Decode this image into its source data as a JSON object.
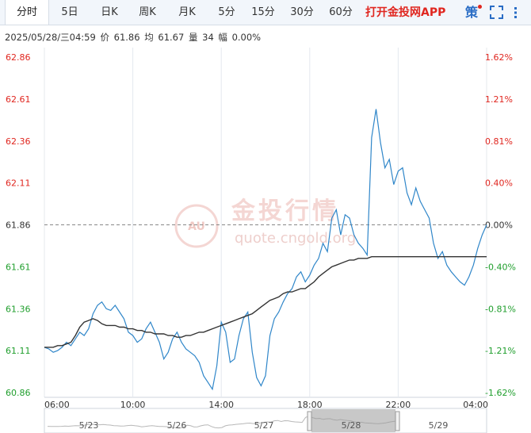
{
  "tabs": [
    {
      "label": "分时",
      "active": true
    },
    {
      "label": "5日"
    },
    {
      "label": "日K"
    },
    {
      "label": "周K"
    },
    {
      "label": "月K"
    },
    {
      "label": "5分"
    },
    {
      "label": "15分"
    },
    {
      "label": "30分"
    },
    {
      "label": "60分"
    }
  ],
  "app_link": "打开金投网APP",
  "policy_label": "策",
  "info": {
    "datetime": "2025/05/28/三04:59",
    "price_label": "价",
    "price": "61.86",
    "avg_label": "均",
    "avg": "61.67",
    "volume_label": "量",
    "volume": "34",
    "change_label": "幅",
    "change": "0.00%"
  },
  "watermark": {
    "title": "金投行情",
    "url": "quote.cngold.org",
    "badge": "AU"
  },
  "colors": {
    "price_line": "#2f86c9",
    "avg_line": "#333333",
    "up": "#e0261f",
    "down": "#1f9e2c",
    "neutral": "#333333",
    "grid": "#e4e8ee",
    "ref_line": "#888888"
  },
  "chart_data": {
    "type": "line",
    "ylim": [
      60.86,
      62.86
    ],
    "base_price": 61.86,
    "y_ticks_left": [
      "62.86",
      "62.61",
      "62.36",
      "62.11",
      "61.86",
      "61.61",
      "61.36",
      "61.11",
      "60.86"
    ],
    "y_ticks_right": [
      "1.62%",
      "1.21%",
      "0.81%",
      "0.40%",
      "0.00%",
      "-0.40%",
      "-0.81%",
      "-1.21%",
      "-1.62%"
    ],
    "x_ticks": [
      "06:00",
      "10:00",
      "14:00",
      "18:00",
      "22:00",
      "04:00"
    ],
    "series": [
      {
        "values": [
          61.13,
          61.12,
          61.1,
          61.11,
          61.13,
          61.16,
          61.14,
          61.18,
          61.22,
          61.2,
          61.24,
          61.33,
          61.38,
          61.4,
          61.36,
          61.35,
          61.38,
          61.34,
          61.3,
          61.22,
          61.2,
          61.16,
          61.18,
          61.24,
          61.28,
          61.22,
          61.16,
          61.06,
          61.1,
          61.18,
          61.22,
          61.16,
          61.12,
          61.1,
          61.08,
          61.04,
          60.96,
          60.92,
          60.88,
          61.02,
          61.28,
          61.22,
          61.04,
          61.06,
          61.2,
          61.3,
          61.34,
          61.1,
          60.95,
          60.9,
          60.96,
          61.2,
          61.3,
          61.34,
          61.4,
          61.45,
          61.48,
          61.55,
          61.58,
          61.52,
          61.56,
          61.62,
          61.66,
          61.75,
          61.7,
          61.9,
          61.95,
          61.8,
          61.92,
          61.9,
          61.8,
          61.75,
          61.72,
          61.68,
          62.38,
          62.55,
          62.35,
          62.2,
          62.25,
          62.1,
          62.18,
          62.2,
          62.05,
          61.98,
          62.08,
          62.0,
          61.95,
          61.9,
          61.75,
          61.66,
          61.7,
          61.62,
          61.58,
          61.55,
          61.52,
          61.5,
          61.55,
          61.62,
          61.72,
          61.8,
          61.86
        ]
      },
      {
        "values": [
          61.13,
          61.13,
          61.13,
          61.14,
          61.14,
          61.15,
          61.16,
          61.2,
          61.25,
          61.28,
          61.29,
          61.3,
          61.29,
          61.27,
          61.26,
          61.26,
          61.26,
          61.25,
          61.25,
          61.24,
          61.24,
          61.23,
          61.23,
          61.22,
          61.22,
          61.21,
          61.21,
          61.21,
          61.2,
          61.2,
          61.19,
          61.19,
          61.2,
          61.2,
          61.21,
          61.22,
          61.22,
          61.23,
          61.24,
          61.25,
          61.26,
          61.27,
          61.28,
          61.29,
          61.3,
          61.31,
          61.32,
          61.33,
          61.35,
          61.37,
          61.39,
          61.41,
          61.42,
          61.43,
          61.45,
          61.46,
          61.46,
          61.47,
          61.48,
          61.48,
          61.5,
          61.52,
          61.55,
          61.57,
          61.59,
          61.61,
          61.62,
          61.63,
          61.64,
          61.65,
          61.65,
          61.66,
          61.66,
          61.66,
          61.67,
          61.67,
          61.67,
          61.67,
          61.67,
          61.67,
          61.67,
          61.67,
          61.67,
          61.67,
          61.67,
          61.67,
          61.67,
          61.67,
          61.67,
          61.67,
          61.67,
          61.67,
          61.67,
          61.67,
          61.67,
          61.67,
          61.67,
          61.67,
          61.67,
          61.67,
          61.67
        ]
      }
    ],
    "navigator": {
      "dates": [
        "5/23",
        "5/26",
        "5/27",
        "5/28",
        "5/29"
      ]
    }
  }
}
